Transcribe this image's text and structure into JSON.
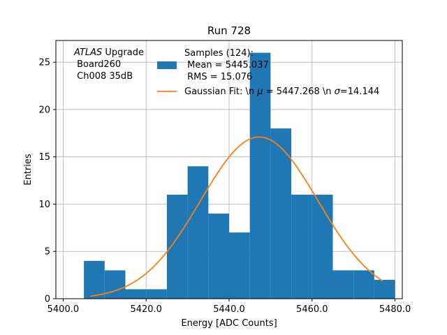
{
  "chart_data": {
    "type": "histogram",
    "title": "Run 728",
    "xlabel": "Energy [ADC Counts]",
    "ylabel": "Entries",
    "xlim": [
      5398.25,
      5481.75
    ],
    "ylim": [
      0,
      27.3
    ],
    "grid": true,
    "x_ticks": [
      5400,
      5420,
      5440,
      5460,
      5480
    ],
    "x_tick_labels": [
      "5400.0",
      "5420.0",
      "5440.0",
      "5460.0",
      "5480.0"
    ],
    "y_ticks": [
      0,
      5,
      10,
      15,
      20,
      25
    ],
    "y_tick_labels": [
      "0",
      "5",
      "10",
      "15",
      "20",
      "25"
    ],
    "bin_edges": [
      5405,
      5410,
      5415,
      5420,
      5425,
      5430,
      5435,
      5440,
      5445,
      5450,
      5455,
      5460,
      5465,
      5470,
      5475,
      5480
    ],
    "counts": [
      4,
      3,
      1,
      1,
      11,
      14,
      9,
      7,
      26,
      18,
      11,
      11,
      3,
      3,
      2
    ],
    "bar_color": "#1f77b4",
    "fit": {
      "type": "gaussian",
      "mean": 5447.268,
      "sigma": 14.144,
      "amplitude": 17.1,
      "x_range": [
        5406.5,
        5477.0
      ],
      "color": "#ff7f0e"
    },
    "annotation": {
      "line1_italic": "ATLAS",
      "line1_rest": " Upgrade",
      "line2": " Board260",
      "line3": " Ch008 35dB"
    },
    "legend": {
      "position": "upper-center",
      "samples_line1": "Samples (124):",
      "samples_line2": " Mean = 5445.037",
      "samples_line3": " RMS = 15.076",
      "fit_prefix": "Gaussian Fit: \\n ",
      "fit_mu_symbol": "μ",
      "fit_middle": " = 5447.268 \\n ",
      "fit_sigma_symbol": "σ",
      "fit_suffix": "=14.144"
    }
  }
}
